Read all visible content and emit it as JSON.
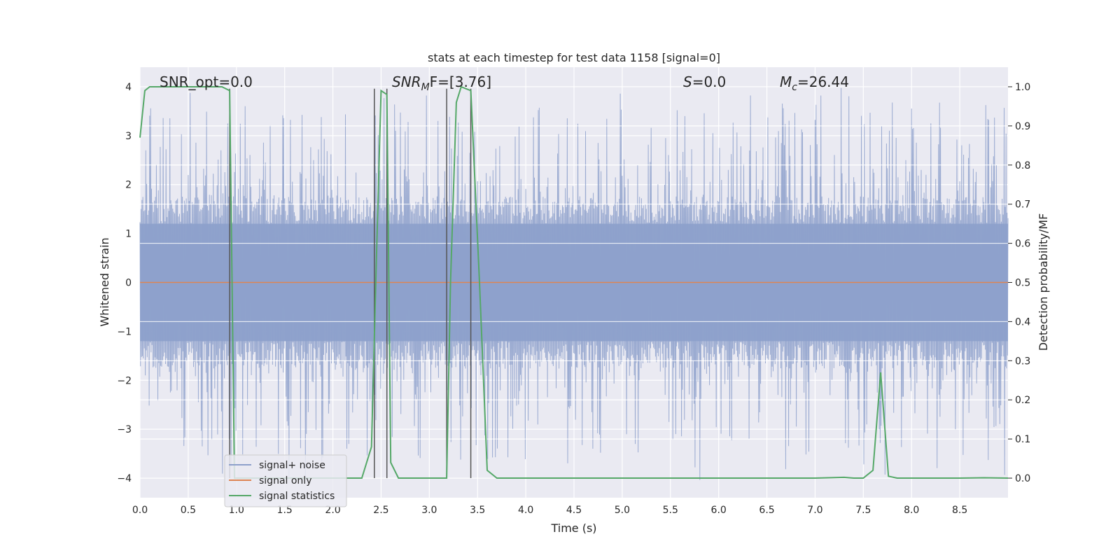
{
  "chart_data": {
    "type": "line",
    "title": "stats at each timestep for test data 1158 [signal=0]",
    "xlabel": "Time (s)",
    "ylabel_left": "Whitened strain",
    "ylabel_right": "Detection probability/MF",
    "xlim": [
      0,
      9.0
    ],
    "ylim_left": [
      -4.4,
      4.4
    ],
    "ylim_right": [
      -0.05,
      1.05
    ],
    "x_ticks": [
      "0.0",
      "0.5",
      "1.0",
      "1.5",
      "2.0",
      "2.5",
      "3.0",
      "3.5",
      "4.0",
      "4.5",
      "5.0",
      "5.5",
      "6.0",
      "6.5",
      "7.0",
      "7.5",
      "8.0",
      "8.5"
    ],
    "y_ticks_left": [
      "4",
      "3",
      "2",
      "1",
      "0",
      "−1",
      "−2",
      "−3",
      "−4"
    ],
    "y_ticks_right": [
      "1.0",
      "0.9",
      "0.8",
      "0.7",
      "0.6",
      "0.5",
      "0.4",
      "0.3",
      "0.2",
      "0.1",
      "0.0"
    ],
    "annotations": {
      "snr_opt": "SNR_opt=0.0",
      "snr_mf_main": "SNR",
      "snr_mf_sub": "M",
      "snr_mf_rest": "F=[3.76]",
      "s_main": "S",
      "s_rest": "=0.0",
      "mc_main": "M",
      "mc_sub": "c",
      "mc_rest": "=26.44"
    },
    "legend": {
      "placement": "lower-left",
      "entries": [
        "signal+ noise",
        "signal only",
        "signal statistics"
      ]
    },
    "colors": {
      "noise": "#8da0cb",
      "signal_only": "#dd8452",
      "statistics": "#55a868",
      "vline": "#555555",
      "background": "#eaeaf2",
      "grid": "#ffffff"
    },
    "series": [
      {
        "name": "signal+ noise",
        "description_values": "noise band approx -4 to 4",
        "amplitude_core": 1.6,
        "amplitude_peak": 3.9
      },
      {
        "name": "signal only",
        "values_constant": 0.0
      },
      {
        "name": "signal statistics",
        "x": [
          0.0,
          0.05,
          0.1,
          0.2,
          0.3,
          0.5,
          0.7,
          0.85,
          0.93,
          0.98,
          1.05,
          1.2,
          1.6,
          2.0,
          2.3,
          2.4,
          2.45,
          2.5,
          2.56,
          2.6,
          2.68,
          2.8,
          3.0,
          3.18,
          3.22,
          3.28,
          3.33,
          3.43,
          3.52,
          3.6,
          3.7,
          4.0,
          4.5,
          5.0,
          5.1,
          5.5,
          6.0,
          6.5,
          7.0,
          7.3,
          7.4,
          7.5,
          7.6,
          7.68,
          7.76,
          7.85,
          8.0,
          8.5,
          8.75,
          9.0
        ],
        "values": [
          0.87,
          0.99,
          1.0,
          1.0,
          1.0,
          1.0,
          1.0,
          1.0,
          0.99,
          0.0,
          0.0,
          0.0,
          0.0,
          0.0,
          0.0,
          0.08,
          0.55,
          0.99,
          0.98,
          0.04,
          0.0,
          0.0,
          0.0,
          0.0,
          0.5,
          0.96,
          1.0,
          0.99,
          0.5,
          0.02,
          0.0,
          0.0,
          0.0,
          0.0,
          0.0,
          0.0,
          0.0,
          0.0,
          0.0,
          0.002,
          0.0,
          0.0,
          0.02,
          0.27,
          0.005,
          0.0,
          0.0,
          0.0,
          0.001,
          0.0
        ]
      }
    ],
    "vlines_x": [
      0.93,
      2.43,
      2.56,
      3.18,
      3.43
    ],
    "grid": true
  }
}
